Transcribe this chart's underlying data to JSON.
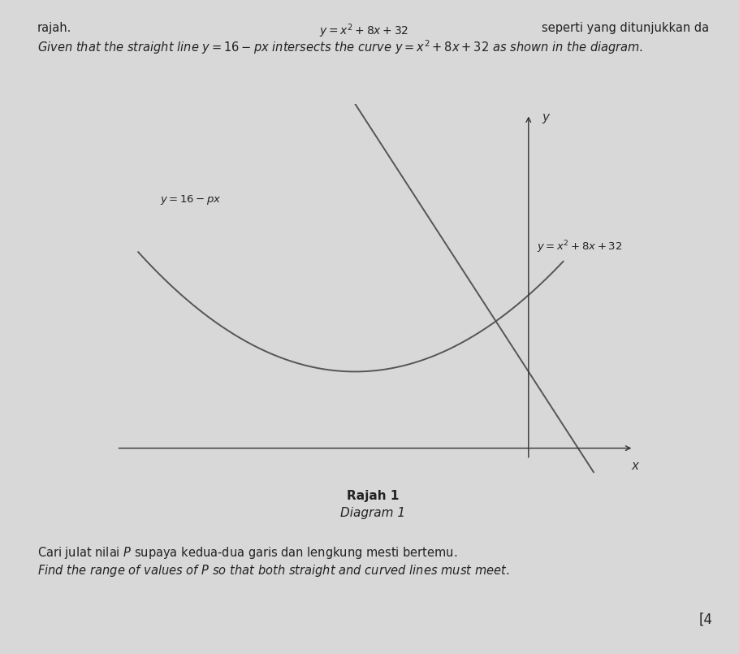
{
  "background_color": "#d8d8d8",
  "line_label": "$y = 16 - px$",
  "curve_label": "$y = x^2 + 8x + 32$",
  "diagram_label_ms": "Rajah 1",
  "diagram_label_en": "Diagram 1",
  "plot_color": "#555555",
  "axis_color": "#333333",
  "line_width": 1.4,
  "p_val": 14,
  "x_min": -9.5,
  "x_max": 2.5,
  "y_min": -8,
  "y_max": 72,
  "x_origin": 0.0,
  "y_origin": 0.0,
  "header_top_left": "rajah.",
  "header_top_right": "seperti yang ditunjukkan da",
  "header_top_center": "lengkung  $y = x^2 + 8x + 32$",
  "given_line": "Given that the straight line $y=16-px$ intersects the curve $y=x^2+8x+32$ as shown in the diagram.",
  "footer_ms": "Cari julat nilai $P$ supaya kedua-dua garis dan lengkung mesti bertemu.",
  "footer_en": "Find the range of values of $P$ so that both straight and curved lines must meet.",
  "marks": "[4"
}
